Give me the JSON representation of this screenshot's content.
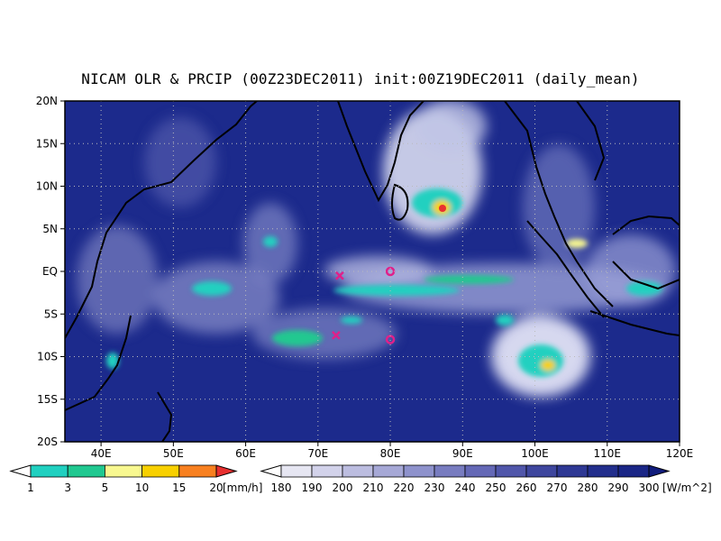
{
  "title": "NICAM OLR & PRCIP (00Z23DEC2011) init:00Z19DEC2011 (daily_mean)",
  "map": {
    "lon_range": [
      35,
      120
    ],
    "lat_range": [
      -20,
      20
    ],
    "lat_labels": [
      "20N",
      "15N",
      "10N",
      "5N",
      "EQ",
      "5S",
      "10S",
      "15S",
      "20S"
    ],
    "lon_labels": [
      "40E",
      "50E",
      "60E",
      "70E",
      "80E",
      "90E",
      "100E",
      "110E",
      "120E"
    ],
    "ocean_background_color": "#1c2a8c",
    "gridlines": "dotted"
  },
  "markers": [
    {
      "symbol": "x",
      "color": "#e0208a",
      "lon": 73,
      "lat": -0.5
    },
    {
      "symbol": "x",
      "color": "#e0208a",
      "lon": 72.5,
      "lat": -7.5
    },
    {
      "symbol": "o",
      "color": "#e0208a",
      "lon": 80,
      "lat": 0
    },
    {
      "symbol": "o",
      "color": "#e0208a",
      "lon": 80,
      "lat": -8
    }
  ],
  "precip_colorbar": {
    "labels": [
      "1",
      "3",
      "5",
      "10",
      "15",
      "20"
    ],
    "unit": "[mm/h]",
    "colors": [
      "#ffffff",
      "#20d0c0",
      "#20c890",
      "#f8f890",
      "#f8d000",
      "#f88020",
      "#e83030"
    ]
  },
  "olr_colorbar": {
    "labels": [
      "180",
      "190",
      "200",
      "210",
      "220",
      "230",
      "240",
      "250",
      "260",
      "270",
      "280",
      "290",
      "300"
    ],
    "unit": "[W/m^2]",
    "colors": [
      "#ffffff",
      "#e6e6f2",
      "#d2d2ea",
      "#bcbde0",
      "#a6a8d6",
      "#8e92cc",
      "#787cc0",
      "#6468b6",
      "#5056aa",
      "#3e469e",
      "#2e3894",
      "#222e8c",
      "#1a2686",
      "#101c7c"
    ]
  }
}
